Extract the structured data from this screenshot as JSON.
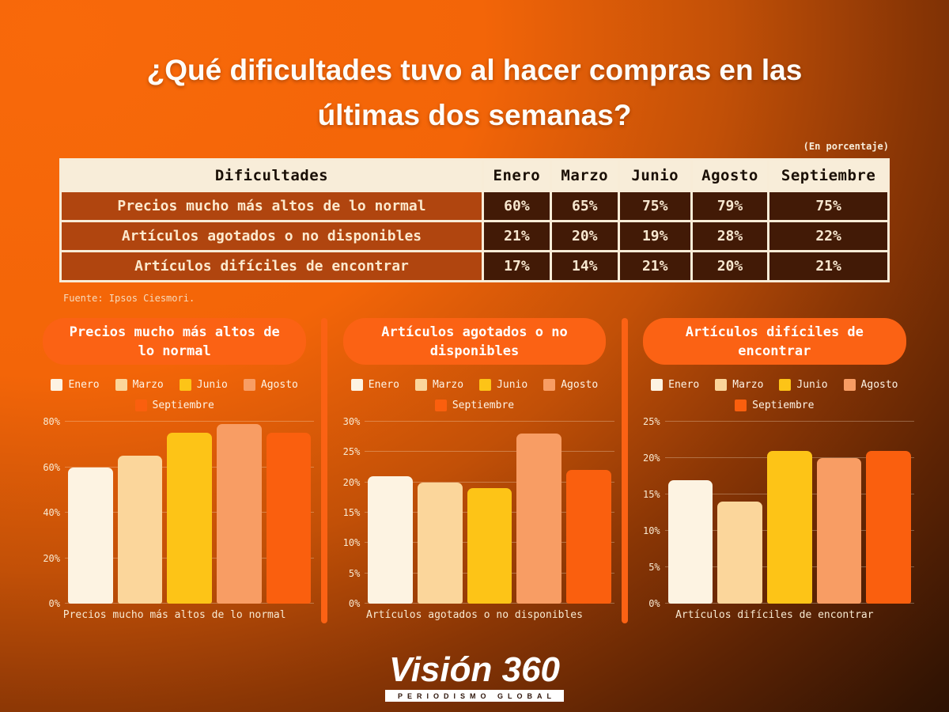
{
  "page": {
    "title_lines": [
      "¿Qué dificultades tuvo al hacer compras en las",
      "últimas dos semanas?"
    ],
    "unit_note": "(En porcentaje)",
    "source": "Fuente: Ipsos Ciesmori."
  },
  "table": {
    "headers": [
      "Dificultades",
      "Enero",
      "Marzo",
      "Junio",
      "Agosto",
      "Septiembre"
    ],
    "rows": [
      {
        "label": "Precios mucho más altos de lo normal",
        "values": [
          "60%",
          "65%",
          "75%",
          "79%",
          "75%"
        ]
      },
      {
        "label": "Artículos agotados o no disponibles",
        "values": [
          "21%",
          "20%",
          "19%",
          "28%",
          "22%"
        ]
      },
      {
        "label": "Artículos difíciles de encontrar",
        "values": [
          "17%",
          "14%",
          "21%",
          "20%",
          "21%"
        ]
      }
    ]
  },
  "legend": {
    "items": [
      {
        "label": "Enero",
        "color": "#fdf3e2"
      },
      {
        "label": "Marzo",
        "color": "#fbd69b"
      },
      {
        "label": "Junio",
        "color": "#fdc417"
      },
      {
        "label": "Agosto",
        "color": "#f89d64"
      },
      {
        "label": "Septiembre",
        "color": "#fa5f0e"
      }
    ]
  },
  "panels": [
    {
      "title_lines": [
        "Precios mucho más altos de",
        "lo normal"
      ]
    },
    {
      "title_lines": [
        "Artículos agotados o no",
        "disponibles"
      ]
    },
    {
      "title_lines": [
        "Artículos difíciles de",
        "encontrar"
      ]
    }
  ],
  "chart_data": [
    {
      "type": "bar",
      "title": "Precios mucho más altos de lo normal",
      "categories": [
        "Enero",
        "Marzo",
        "Junio",
        "Agosto",
        "Septiembre"
      ],
      "values": [
        60,
        65,
        75,
        79,
        75
      ],
      "xlabel": "Precios mucho más altos de lo normal",
      "ylabel": "",
      "ylim": [
        0,
        80
      ],
      "yticks": [
        "0%",
        "20%",
        "40%",
        "60%",
        "80%"
      ],
      "grid": true,
      "legend_position": "top"
    },
    {
      "type": "bar",
      "title": "Artículos agotados o no disponibles",
      "categories": [
        "Enero",
        "Marzo",
        "Junio",
        "Agosto",
        "Septiembre"
      ],
      "values": [
        21,
        20,
        19,
        28,
        22
      ],
      "xlabel": "Artículos agotados o no disponibles",
      "ylabel": "",
      "ylim": [
        0,
        30
      ],
      "yticks": [
        "0%",
        "5%",
        "10%",
        "15%",
        "20%",
        "25%",
        "30%"
      ],
      "grid": true,
      "legend_position": "top"
    },
    {
      "type": "bar",
      "title": "Artículos difíciles de encontrar",
      "categories": [
        "Enero",
        "Marzo",
        "Junio",
        "Agosto",
        "Septiembre"
      ],
      "values": [
        17,
        14,
        21,
        20,
        21
      ],
      "xlabel": "Artículos difíciles de encontrar",
      "ylabel": "",
      "ylim": [
        0,
        25
      ],
      "yticks": [
        "0%",
        "5%",
        "10%",
        "15%",
        "20%",
        "25%"
      ],
      "grid": true,
      "legend_position": "top"
    }
  ],
  "logo": {
    "name": "Visión 360",
    "tagline": "PERIODISMO GLOBAL"
  },
  "colors": {
    "accent_orange": "#fb6214",
    "cream": "#f8ecd7",
    "table_header_bg": "#f8edd9",
    "table_header_text": "#1a0f05",
    "table_label_bg": "#b0450f",
    "table_value_bg": "#421a06",
    "bg_top_left": "#f8690a",
    "bg_bottom_right": "#120701"
  }
}
